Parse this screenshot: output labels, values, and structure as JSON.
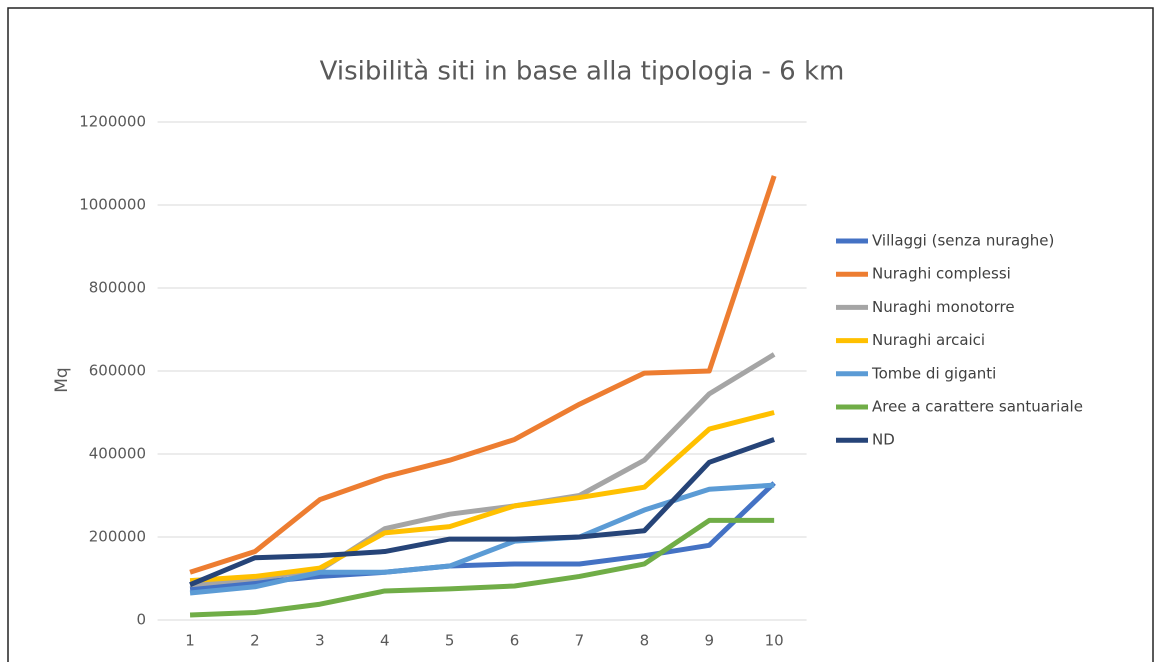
{
  "chart_data": {
    "type": "line",
    "title": "Visibilità siti in base alla tipologia - 6 km",
    "y_label": "Mq",
    "categories": [
      1,
      2,
      3,
      4,
      5,
      6,
      7,
      8,
      9,
      10
    ],
    "ylim": [
      0,
      1200000
    ],
    "yticks": [
      0,
      200000,
      400000,
      600000,
      800000,
      1000000,
      1200000
    ],
    "grid": true,
    "legend": "right",
    "series": [
      {
        "name": "Villaggi (senza nuraghe)",
        "color": "#4472c4",
        "values": [
          75000,
          90000,
          105000,
          115000,
          130000,
          135000,
          135000,
          155000,
          180000,
          330000
        ]
      },
      {
        "name": "Nuraghi complessi",
        "color": "#ed7d31",
        "values": [
          115000,
          165000,
          290000,
          345000,
          385000,
          435000,
          520000,
          595000,
          600000,
          1070000
        ]
      },
      {
        "name": "Nuraghi monotorre",
        "color": "#a5a5a5",
        "values": [
          85000,
          100000,
          120000,
          220000,
          255000,
          275000,
          300000,
          385000,
          545000,
          640000
        ]
      },
      {
        "name": "Nuraghi arcaici",
        "color": "#ffc000",
        "values": [
          95000,
          105000,
          125000,
          210000,
          225000,
          275000,
          295000,
          320000,
          460000,
          500000
        ]
      },
      {
        "name": "Tombe di giganti",
        "color": "#5b9bd5",
        "values": [
          65000,
          80000,
          115000,
          115000,
          130000,
          190000,
          200000,
          265000,
          315000,
          325000
        ]
      },
      {
        "name": "Aree a carattere santuariale",
        "color": "#70ad47",
        "values": [
          12000,
          18000,
          38000,
          70000,
          75000,
          82000,
          105000,
          135000,
          240000,
          240000
        ]
      },
      {
        "name": "ND",
        "color": "#264478",
        "values": [
          85000,
          150000,
          155000,
          165000,
          195000,
          195000,
          200000,
          215000,
          380000,
          435000
        ]
      }
    ]
  }
}
